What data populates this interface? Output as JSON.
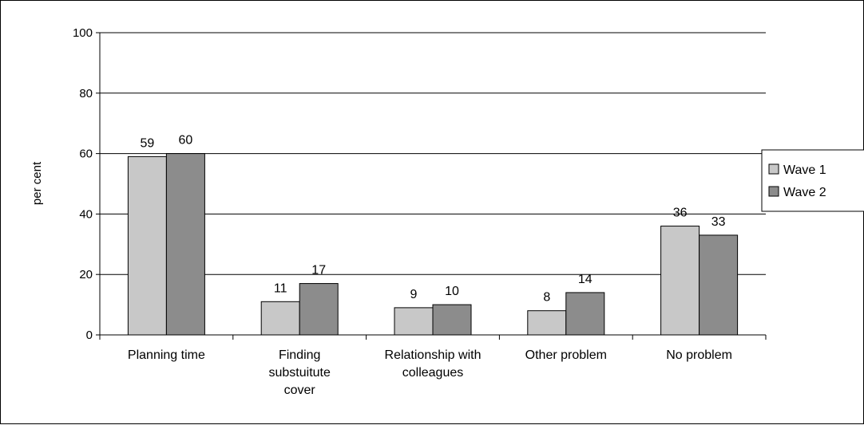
{
  "chart_data": {
    "type": "bar",
    "title": "",
    "xlabel": "",
    "ylabel": "per cent",
    "ylim": [
      0,
      100
    ],
    "yticks": [
      0,
      20,
      40,
      60,
      80,
      100
    ],
    "grid": true,
    "legend_position": "right",
    "categories": [
      [
        "Planning time"
      ],
      [
        "Finding",
        "substuitute",
        "cover"
      ],
      [
        "Relationship with",
        "colleagues"
      ],
      [
        "Other problem"
      ],
      [
        "No problem"
      ]
    ],
    "series": [
      {
        "name": "Wave 1",
        "color": "#c8c8c8",
        "values": [
          59,
          11,
          9,
          8,
          36
        ]
      },
      {
        "name": "Wave 2",
        "color": "#8c8c8c",
        "values": [
          60,
          17,
          10,
          14,
          33
        ]
      }
    ]
  }
}
